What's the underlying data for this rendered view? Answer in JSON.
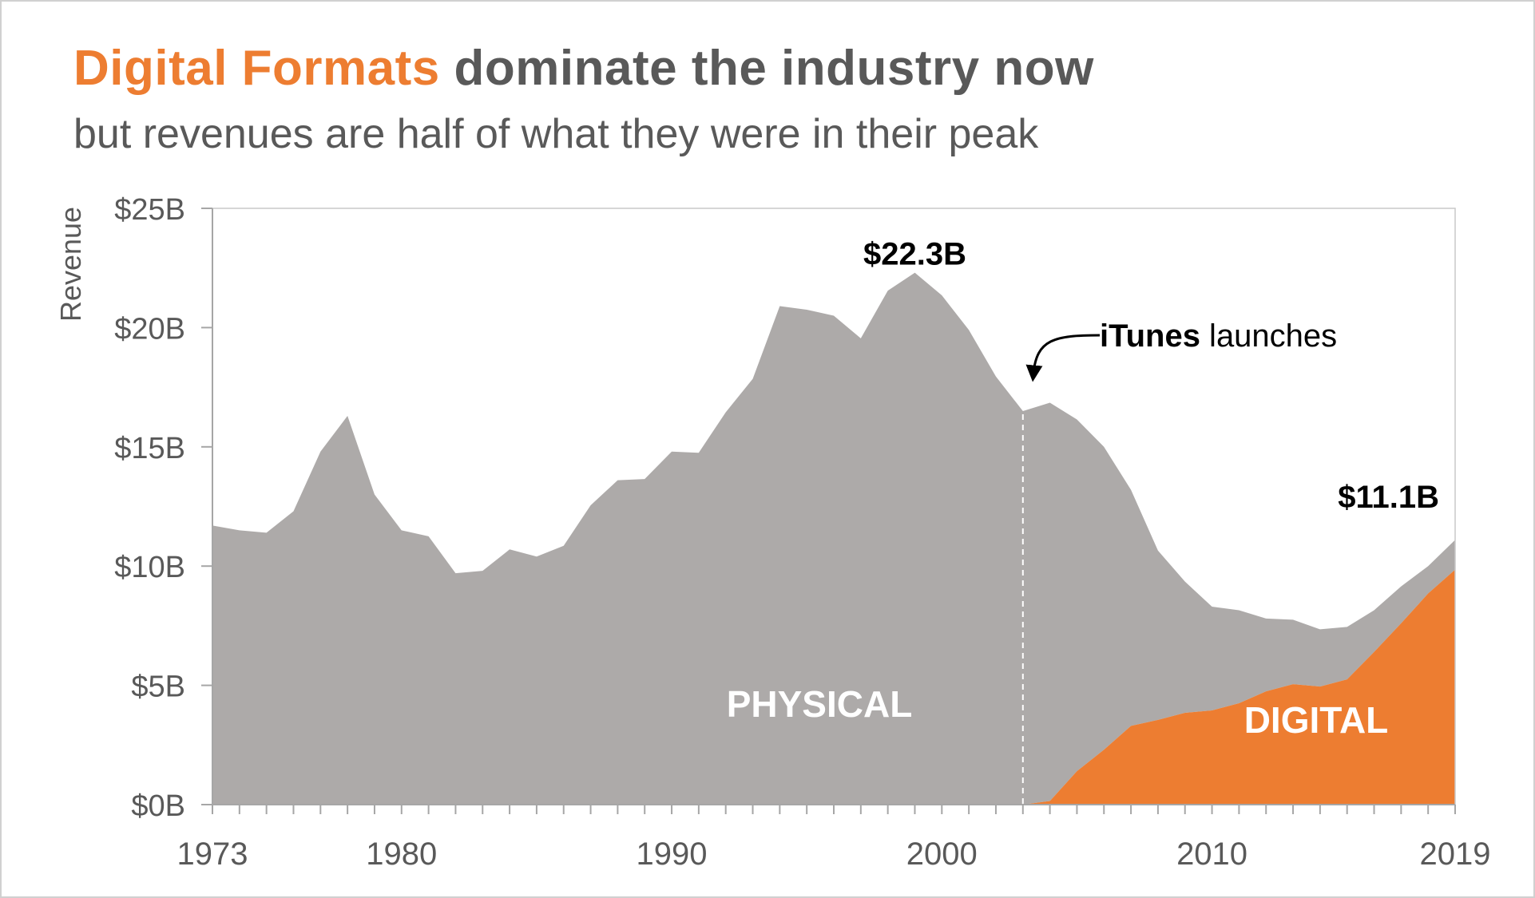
{
  "title": {
    "highlight": "Digital Formats",
    "rest": "dominate the industry now",
    "subtitle": "but revenues are half of what they were in their peak"
  },
  "colors": {
    "physical": "#ADAAA9",
    "digital": "#ED7D31",
    "text": "#595959",
    "axis": "#A6A6A6",
    "annotation": "#000000"
  },
  "chart_data": {
    "type": "area",
    "stacked": true,
    "title": "Digital Formats dominate the industry now",
    "subtitle": "but revenues are half of what they were in their peak",
    "xlabel": "",
    "ylabel": "Revenue",
    "xlim": [
      1973,
      2019
    ],
    "ylim": [
      0,
      25
    ],
    "y_unit": "$B",
    "yticks": [
      0,
      5,
      10,
      15,
      20,
      25
    ],
    "ytick_labels": [
      "$0B",
      "$5B",
      "$10B",
      "$15B",
      "$20B",
      "$25B"
    ],
    "xticks": [
      1973,
      1980,
      1990,
      2000,
      2010,
      2019
    ],
    "xtick_labels": [
      "1973",
      "1980",
      "1990",
      "2000",
      "2010",
      "2019"
    ],
    "x": [
      1973,
      1974,
      1975,
      1976,
      1977,
      1978,
      1979,
      1980,
      1981,
      1982,
      1983,
      1984,
      1985,
      1986,
      1987,
      1988,
      1989,
      1990,
      1991,
      1992,
      1993,
      1994,
      1995,
      1996,
      1997,
      1998,
      1999,
      2000,
      2001,
      2002,
      2003,
      2004,
      2005,
      2006,
      2007,
      2008,
      2009,
      2010,
      2011,
      2012,
      2013,
      2014,
      2015,
      2016,
      2017,
      2018,
      2019
    ],
    "series": [
      {
        "name": "PHYSICAL",
        "values": [
          11.7,
          11.5,
          11.4,
          12.3,
          14.8,
          16.3,
          13.0,
          11.5,
          11.25,
          9.7,
          9.8,
          10.7,
          10.4,
          10.85,
          12.55,
          13.6,
          13.65,
          14.8,
          14.75,
          16.45,
          17.85,
          20.9,
          20.75,
          20.5,
          19.55,
          21.55,
          22.3,
          21.35,
          19.9,
          17.95,
          16.5,
          16.7,
          14.75,
          12.7,
          9.9,
          7.1,
          5.5,
          4.35,
          3.9,
          3.05,
          2.7,
          2.4,
          2.2,
          1.75,
          1.55,
          1.15,
          1.25
        ]
      },
      {
        "name": "DIGITAL",
        "values": [
          0,
          0,
          0,
          0,
          0,
          0,
          0,
          0,
          0,
          0,
          0,
          0,
          0,
          0,
          0,
          0,
          0,
          0,
          0,
          0,
          0,
          0,
          0,
          0,
          0,
          0,
          0,
          0,
          0,
          0,
          0,
          0.15,
          1.4,
          2.3,
          3.3,
          3.55,
          3.85,
          3.95,
          4.25,
          4.75,
          5.05,
          4.95,
          5.25,
          6.4,
          7.6,
          8.85,
          9.85
        ]
      }
    ],
    "annotations": [
      {
        "text": "$22.3B",
        "x": 1999,
        "y": 22.3
      },
      {
        "text": "$11.1B",
        "x": 2019,
        "y": 11.1
      },
      {
        "text_bold": "iTunes",
        "text": " launches",
        "x": 2003
      }
    ],
    "area_labels": [
      "PHYSICAL",
      "DIGITAL"
    ]
  }
}
